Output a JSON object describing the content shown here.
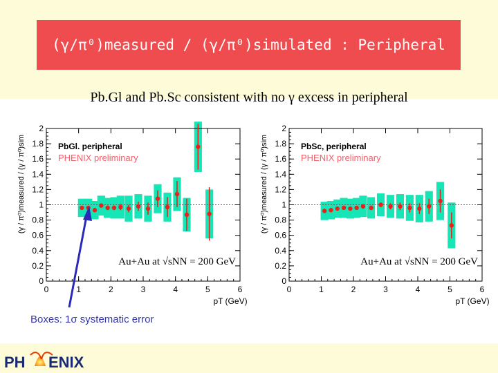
{
  "slide": {
    "title": "(γ/π⁰)measured / (γ/π⁰)simulated : Peripheral",
    "subtitle": "Pb.Gl and Pb.Sc consistent with no γ excess in peripheral",
    "footnote": "Boxes: 1σ systematic error",
    "logo_text": "PHENIX",
    "colors": {
      "header": "#ef4c4f",
      "band": "#16e6b6",
      "points": "#e8221a",
      "arrow": "#2a2ab8",
      "preliminary": "#f0606a"
    }
  },
  "chart_data": [
    {
      "type": "scatter",
      "panel_label": "PbGl. peripheral",
      "preliminary": "PHENIX preliminary",
      "annotation": "Au+Au at √sNN = 200 GeV",
      "xlabel": "pT (GeV)",
      "ylabel": "(γ / π⁰)measured / (γ / π⁰)sim",
      "xlim": [
        0,
        6
      ],
      "ylim": [
        0,
        2
      ],
      "xticks": [
        "0",
        "1",
        "2",
        "3",
        "4",
        "5",
        "6"
      ],
      "yticks": [
        "0",
        "0.2",
        "0.4",
        "0.6",
        "0.8",
        "1",
        "1.2",
        "1.4",
        "1.6",
        "1.8",
        "2"
      ],
      "reference_line": 1,
      "points": [
        {
          "x": 1.1,
          "y": 0.96,
          "err": 0.02,
          "sys": 0.12
        },
        {
          "x": 1.3,
          "y": 0.96,
          "err": 0.02,
          "sys": 0.12
        },
        {
          "x": 1.5,
          "y": 0.93,
          "err": 0.02,
          "sys": 0.12
        },
        {
          "x": 1.7,
          "y": 0.99,
          "err": 0.02,
          "sys": 0.13
        },
        {
          "x": 1.9,
          "y": 0.96,
          "err": 0.03,
          "sys": 0.13
        },
        {
          "x": 2.1,
          "y": 0.96,
          "err": 0.03,
          "sys": 0.14
        },
        {
          "x": 2.3,
          "y": 0.97,
          "err": 0.04,
          "sys": 0.15
        },
        {
          "x": 2.55,
          "y": 0.95,
          "err": 0.05,
          "sys": 0.17
        },
        {
          "x": 2.85,
          "y": 0.98,
          "err": 0.06,
          "sys": 0.16
        },
        {
          "x": 3.15,
          "y": 0.95,
          "err": 0.08,
          "sys": 0.17
        },
        {
          "x": 3.45,
          "y": 1.08,
          "err": 0.11,
          "sys": 0.19
        },
        {
          "x": 3.75,
          "y": 0.97,
          "err": 0.13,
          "sys": 0.19
        },
        {
          "x": 4.05,
          "y": 1.14,
          "err": 0.17,
          "sys": 0.22
        },
        {
          "x": 4.35,
          "y": 0.87,
          "err": 0.21,
          "sys": 0.22
        },
        {
          "x": 4.7,
          "y": 1.76,
          "err": 0.3,
          "sys": 0.33
        },
        {
          "x": 5.05,
          "y": 0.88,
          "err": 0.35,
          "sys": 0.32
        }
      ]
    },
    {
      "type": "scatter",
      "panel_label": "PbSc, peripheral",
      "preliminary": "PHENIX preliminary",
      "annotation": "Au+Au at √sNN = 200 GeV",
      "xlabel": "pT (GeV)",
      "ylabel": "(γ / π⁰)measured / (γ / π⁰)sim",
      "xlim": [
        0,
        6
      ],
      "ylim": [
        0,
        2
      ],
      "xticks": [
        "0",
        "1",
        "2",
        "3",
        "4",
        "5",
        "6"
      ],
      "yticks": [
        "0",
        "0.2",
        "0.4",
        "0.6",
        "0.8",
        "1",
        "1.2",
        "1.4",
        "1.6",
        "1.8",
        "2"
      ],
      "reference_line": 1,
      "points": [
        {
          "x": 1.1,
          "y": 0.92,
          "err": 0.02,
          "sys": 0.12
        },
        {
          "x": 1.3,
          "y": 0.93,
          "err": 0.02,
          "sys": 0.12
        },
        {
          "x": 1.5,
          "y": 0.95,
          "err": 0.02,
          "sys": 0.12
        },
        {
          "x": 1.7,
          "y": 0.96,
          "err": 0.02,
          "sys": 0.13
        },
        {
          "x": 1.9,
          "y": 0.95,
          "err": 0.02,
          "sys": 0.13
        },
        {
          "x": 2.1,
          "y": 0.96,
          "err": 0.02,
          "sys": 0.13
        },
        {
          "x": 2.3,
          "y": 0.98,
          "err": 0.03,
          "sys": 0.14
        },
        {
          "x": 2.55,
          "y": 0.96,
          "err": 0.03,
          "sys": 0.14
        },
        {
          "x": 2.85,
          "y": 1.0,
          "err": 0.03,
          "sys": 0.15
        },
        {
          "x": 3.15,
          "y": 0.98,
          "err": 0.04,
          "sys": 0.15
        },
        {
          "x": 3.45,
          "y": 0.98,
          "err": 0.05,
          "sys": 0.16
        },
        {
          "x": 3.75,
          "y": 0.96,
          "err": 0.06,
          "sys": 0.17
        },
        {
          "x": 4.05,
          "y": 0.95,
          "err": 0.07,
          "sys": 0.18
        },
        {
          "x": 4.35,
          "y": 0.98,
          "err": 0.1,
          "sys": 0.2
        },
        {
          "x": 4.7,
          "y": 1.05,
          "err": 0.15,
          "sys": 0.25
        },
        {
          "x": 5.05,
          "y": 0.73,
          "err": 0.17,
          "sys": 0.3
        }
      ]
    }
  ]
}
